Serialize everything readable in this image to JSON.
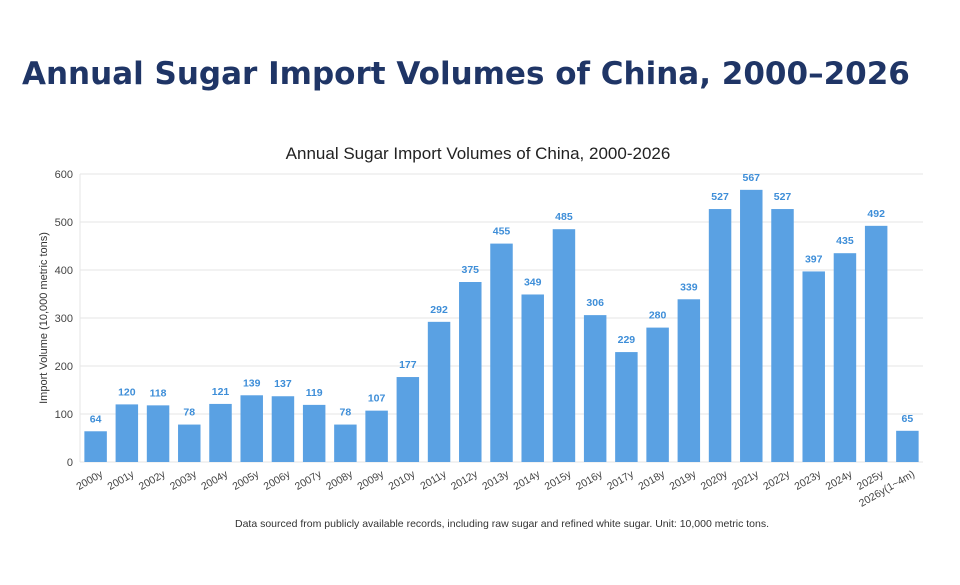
{
  "page": {
    "title": "Annual Sugar Import Volumes of China, 2000–2026"
  },
  "colors": {
    "title": "#1f3566",
    "bar": "#5aa1e3",
    "data_label": "#3e8ed8",
    "grid": "#e6e6e6"
  },
  "chart_data": {
    "type": "bar",
    "title": "Annual Sugar Import Volumes of China, 2000-2026",
    "xlabel": "",
    "ylabel": "Import Volume (10,000 metric tons)",
    "ylim": [
      0,
      600
    ],
    "yticks": [
      0,
      100,
      200,
      300,
      400,
      500,
      600
    ],
    "grid": true,
    "categories": [
      "2000y",
      "2001y",
      "2002y",
      "2003y",
      "2004y",
      "2005y",
      "2006y",
      "2007y",
      "2008y",
      "2009y",
      "2010y",
      "2011y",
      "2012y",
      "2013y",
      "2014y",
      "2015y",
      "2016y",
      "2017y",
      "2018y",
      "2019y",
      "2020y",
      "2021y",
      "2022y",
      "2023y",
      "2024y",
      "2025y",
      "2026y(1~4m)"
    ],
    "values": [
      64,
      120,
      118,
      78,
      121,
      139,
      137,
      119,
      78,
      107,
      177,
      292,
      375,
      455,
      349,
      485,
      306,
      229,
      280,
      339,
      527,
      567,
      527,
      397,
      435,
      492,
      65
    ],
    "footnote": "Data sourced from publicly available records, including raw sugar and refined white sugar. Unit: 10,000 metric tons."
  }
}
